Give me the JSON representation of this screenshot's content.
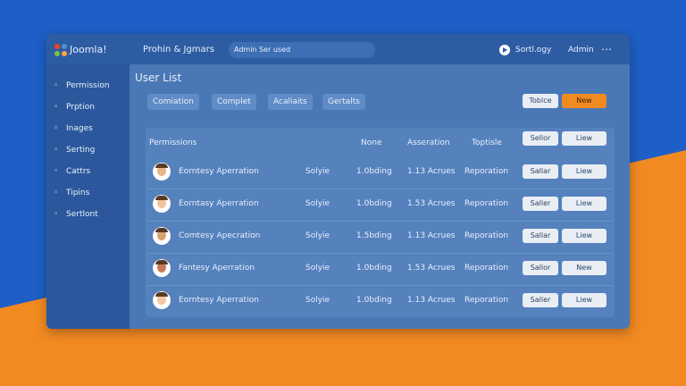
{
  "brand": "Joomla!",
  "topbar": {
    "menu": "Prohin & Jgmars",
    "search": "Admin Ser used",
    "settings": "Sortl.ogy",
    "user": "Admin"
  },
  "sidebar": [
    "Permission",
    "Prption",
    "Inages",
    "Serting",
    "Cattrs",
    "Tipins",
    "Sertlont"
  ],
  "page_title": "User List",
  "filters": [
    "Comiation",
    "Complet",
    "Acaliaits",
    "Gertalts"
  ],
  "actions": [
    "Toblce",
    "New"
  ],
  "table": {
    "columns": [
      "Permissions",
      "None",
      "Asseration",
      "Toptisle"
    ],
    "header_buttons": [
      "Sellor",
      "Liew"
    ],
    "rows": [
      [
        "Eorntesy Aperration",
        "Solyie",
        "1.0bding",
        "1.13 Acrues",
        "Reporation",
        "Sallar",
        "Liew"
      ],
      [
        "Eorntasy Aperration",
        "Solyie",
        "1.0bding",
        "1.53 Acrues",
        "Reporation",
        "Saller",
        "Liew"
      ],
      [
        "Comtesy Apecration",
        "Solyie",
        "1.5bding",
        "1.13 Acrues",
        "Reporation",
        "Sallar",
        "Liew"
      ],
      [
        "Fantesy Aperration",
        "Solyie",
        "1.0bding",
        "1.53 Acrues",
        "Reporation",
        "Sallor",
        "New"
      ],
      [
        "Eorntesy Aperration",
        "Solyie",
        "1.0bding",
        "1.13 Acrues",
        "Reporation",
        "Saller",
        "Liew"
      ]
    ]
  }
}
